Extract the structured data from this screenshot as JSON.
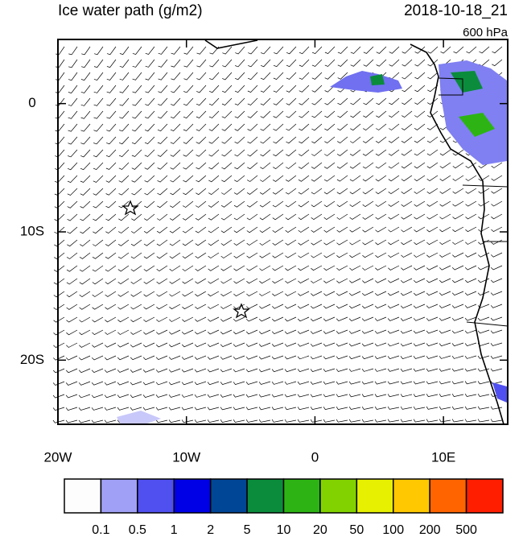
{
  "title": "Ice water path (g/m2)",
  "time": "2018-10-18_21",
  "level": "600 hPa",
  "map": {
    "xlim": [
      -20,
      15
    ],
    "ylim": [
      -25,
      5
    ],
    "xticks": [
      {
        "value": -20,
        "label": "20W"
      },
      {
        "value": -10,
        "label": "10W"
      },
      0,
      {
        "value": 10,
        "label": "10E"
      }
    ],
    "yticks": [
      0,
      {
        "value": -10,
        "label": "10S"
      },
      {
        "value": -20,
        "label": "20S"
      }
    ]
  },
  "colorbar": {
    "colors": [
      "#fdfdfd",
      "#a0a0f6",
      "#5050f0",
      "#0000e6",
      "#004696",
      "#0a8c3c",
      "#2db414",
      "#82d200",
      "#e6f000",
      "#ffc800",
      "#ff6400",
      "#ff1e00"
    ],
    "levels": [
      0.1,
      0.5,
      1,
      2,
      5,
      10,
      20,
      50,
      100,
      200,
      500
    ]
  }
}
